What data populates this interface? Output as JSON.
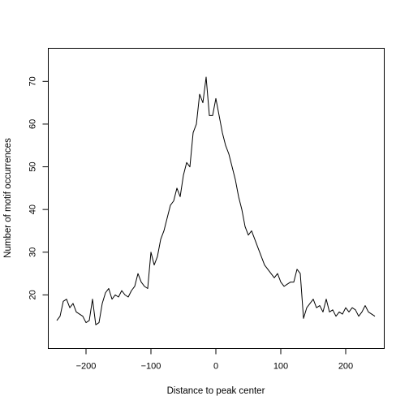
{
  "chart_data": {
    "type": "line",
    "title": "",
    "xlabel": "Distance to peak center",
    "ylabel": "Number of motif occurrences",
    "xlim": [
      -250,
      250
    ],
    "ylim": [
      10,
      75
    ],
    "x_ticks": [
      -200,
      -100,
      0,
      100,
      200
    ],
    "y_ticks": [
      20,
      30,
      40,
      50,
      60,
      70
    ],
    "x_tick_labels": [
      "−200",
      "−100",
      "0",
      "100",
      "200"
    ],
    "y_tick_labels": [
      "20",
      "30",
      "40",
      "50",
      "60",
      "70"
    ],
    "grid": false,
    "legend": "none",
    "series": [
      {
        "color": "#000000",
        "x": [
          -245,
          -240,
          -235,
          -230,
          -225,
          -220,
          -215,
          -210,
          -205,
          -200,
          -195,
          -190,
          -185,
          -180,
          -175,
          -170,
          -165,
          -160,
          -155,
          -150,
          -145,
          -140,
          -135,
          -130,
          -125,
          -120,
          -115,
          -110,
          -105,
          -100,
          -95,
          -90,
          -85,
          -80,
          -75,
          -70,
          -65,
          -60,
          -55,
          -50,
          -45,
          -40,
          -35,
          -30,
          -25,
          -20,
          -15,
          -10,
          -5,
          0,
          5,
          10,
          15,
          20,
          25,
          30,
          35,
          40,
          45,
          50,
          55,
          60,
          65,
          70,
          75,
          80,
          85,
          90,
          95,
          100,
          105,
          110,
          115,
          120,
          125,
          130,
          135,
          140,
          145,
          150,
          155,
          160,
          165,
          170,
          175,
          180,
          185,
          190,
          195,
          200,
          205,
          210,
          215,
          220,
          225,
          230,
          235,
          240,
          245
        ],
        "y": [
          14,
          15,
          18.5,
          19,
          17,
          18,
          16,
          15.5,
          15,
          13.5,
          14,
          19,
          13,
          13.5,
          18,
          20.5,
          21.5,
          19,
          20,
          19.5,
          21,
          20,
          19.5,
          21,
          22,
          25,
          23,
          22,
          21.5,
          30,
          27,
          29,
          33,
          35,
          38,
          41,
          42,
          45,
          43,
          48,
          51,
          50,
          58,
          60,
          67,
          65,
          71,
          62,
          62,
          66,
          62,
          58,
          55,
          53,
          50,
          47,
          43,
          40,
          36,
          34,
          35,
          33,
          31,
          29,
          27,
          26,
          25,
          24,
          25,
          23,
          22,
          22.5,
          23,
          23,
          26,
          25,
          14.5,
          17,
          18,
          19,
          17,
          17.5,
          16,
          19,
          16,
          16.5,
          15,
          16,
          15.5,
          17,
          16,
          17,
          16.5,
          15,
          16,
          17.5,
          16,
          15.5,
          15
        ]
      }
    ]
  }
}
